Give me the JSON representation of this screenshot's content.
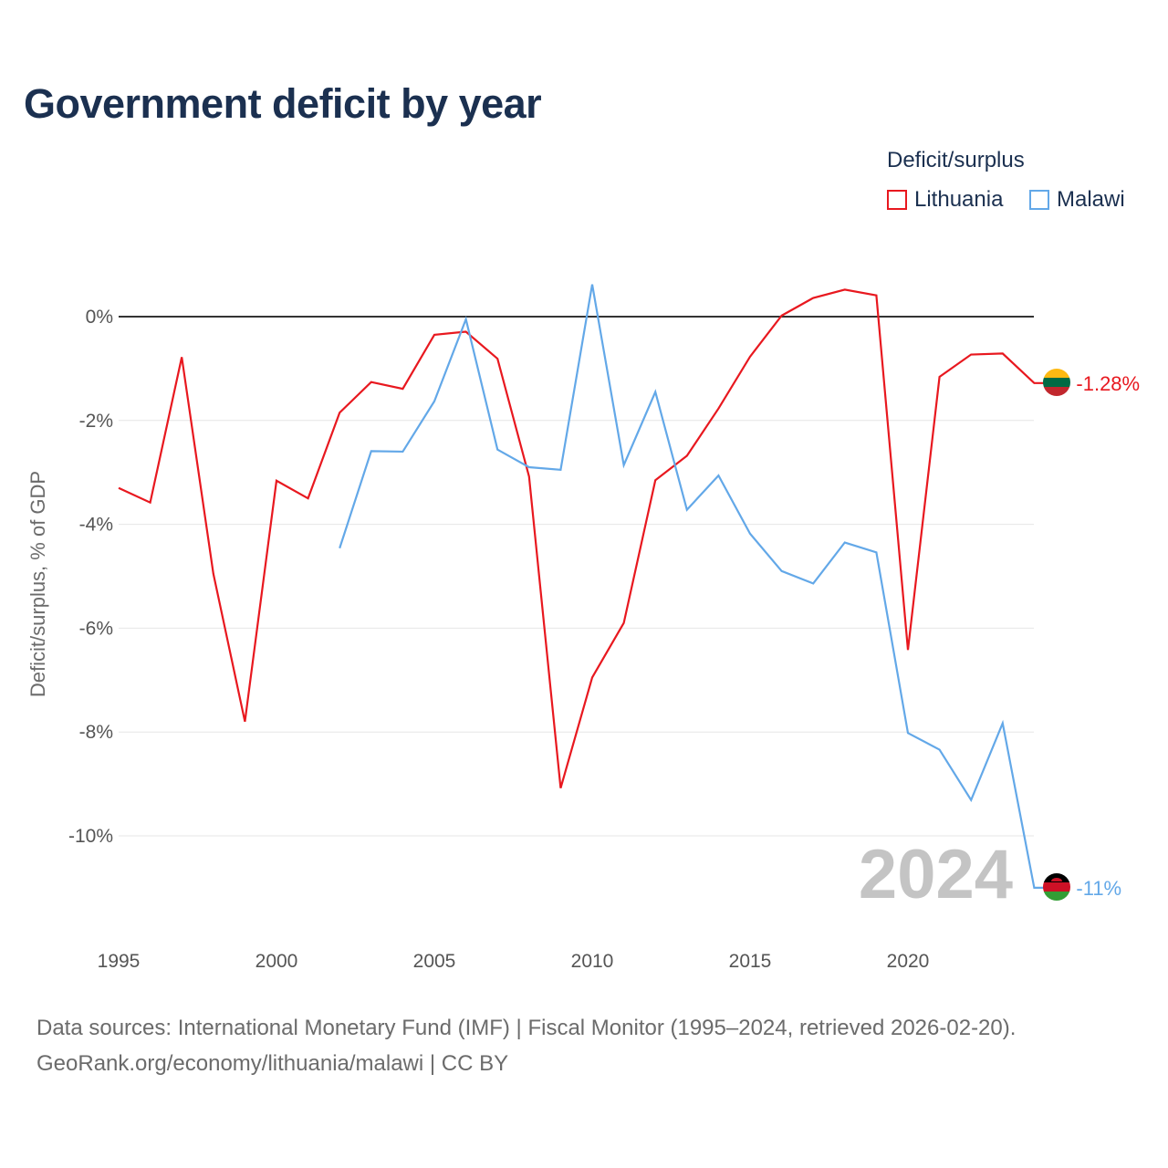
{
  "title": "Government deficit by year",
  "legend": {
    "title": "Deficit/surplus",
    "items": [
      {
        "name": "Lithuania",
        "color": "#e8181f"
      },
      {
        "name": "Malawi",
        "color": "#63a8e8"
      }
    ]
  },
  "source": {
    "line1": "Data sources: International Monetary Fund (IMF) | Fiscal Monitor (1995–2024, retrieved 2026-02-20).",
    "line2": "GeoRank.org/economy/lithuania/malawi | CC BY"
  },
  "chart_data": {
    "type": "line",
    "title": "Government deficit by year",
    "xlabel": "",
    "ylabel": "Deficit/surplus, % of GDP",
    "xlim": [
      1995,
      2024
    ],
    "ylim": [
      -11.5,
      0.8
    ],
    "x_ticks": [
      1995,
      2000,
      2005,
      2010,
      2015,
      2020
    ],
    "y_ticks": [
      {
        "value": 0,
        "label": "0%"
      },
      {
        "value": -2,
        "label": "-2%"
      },
      {
        "value": -4,
        "label": "-4%"
      },
      {
        "value": -6,
        "label": "-6%"
      },
      {
        "value": -8,
        "label": "-8%"
      },
      {
        "value": -10,
        "label": "-10%"
      }
    ],
    "grid": true,
    "watermark": "2024",
    "series": [
      {
        "name": "Lithuania",
        "color": "#e8181f",
        "end_label": "-1.28%",
        "points": [
          [
            1995,
            -3.3
          ],
          [
            1996,
            -3.58
          ],
          [
            1997,
            -0.78
          ],
          [
            1998,
            -4.95
          ],
          [
            1999,
            -7.8
          ],
          [
            2000,
            -3.16
          ],
          [
            2001,
            -3.5
          ],
          [
            2002,
            -1.85
          ],
          [
            2003,
            -1.26
          ],
          [
            2004,
            -1.39
          ],
          [
            2005,
            -0.35
          ],
          [
            2006,
            -0.29
          ],
          [
            2007,
            -0.81
          ],
          [
            2008,
            -3.08
          ],
          [
            2009,
            -9.08
          ],
          [
            2010,
            -6.95
          ],
          [
            2011,
            -5.9
          ],
          [
            2012,
            -3.15
          ],
          [
            2013,
            -2.68
          ],
          [
            2014,
            -1.77
          ],
          [
            2015,
            -0.77
          ],
          [
            2016,
            0.02
          ],
          [
            2017,
            0.36
          ],
          [
            2018,
            0.52
          ],
          [
            2019,
            0.41
          ],
          [
            2020,
            -6.42
          ],
          [
            2021,
            -1.16
          ],
          [
            2022,
            -0.73
          ],
          [
            2023,
            -0.71
          ],
          [
            2024,
            -1.28
          ]
        ]
      },
      {
        "name": "Malawi",
        "color": "#63a8e8",
        "end_label": "-11%",
        "points": [
          [
            2002,
            -4.46
          ],
          [
            2003,
            -2.59
          ],
          [
            2004,
            -2.6
          ],
          [
            2005,
            -1.63
          ],
          [
            2006,
            -0.05
          ],
          [
            2007,
            -2.56
          ],
          [
            2008,
            -2.9
          ],
          [
            2009,
            -2.95
          ],
          [
            2010,
            0.62
          ],
          [
            2011,
            -2.86
          ],
          [
            2012,
            -1.45
          ],
          [
            2013,
            -3.72
          ],
          [
            2014,
            -3.06
          ],
          [
            2015,
            -4.18
          ],
          [
            2016,
            -4.9
          ],
          [
            2017,
            -5.14
          ],
          [
            2018,
            -4.35
          ],
          [
            2019,
            -4.54
          ],
          [
            2020,
            -8.02
          ],
          [
            2021,
            -8.34
          ],
          [
            2022,
            -9.31
          ],
          [
            2023,
            -7.83
          ],
          [
            2024,
            -11.0
          ]
        ]
      }
    ]
  }
}
